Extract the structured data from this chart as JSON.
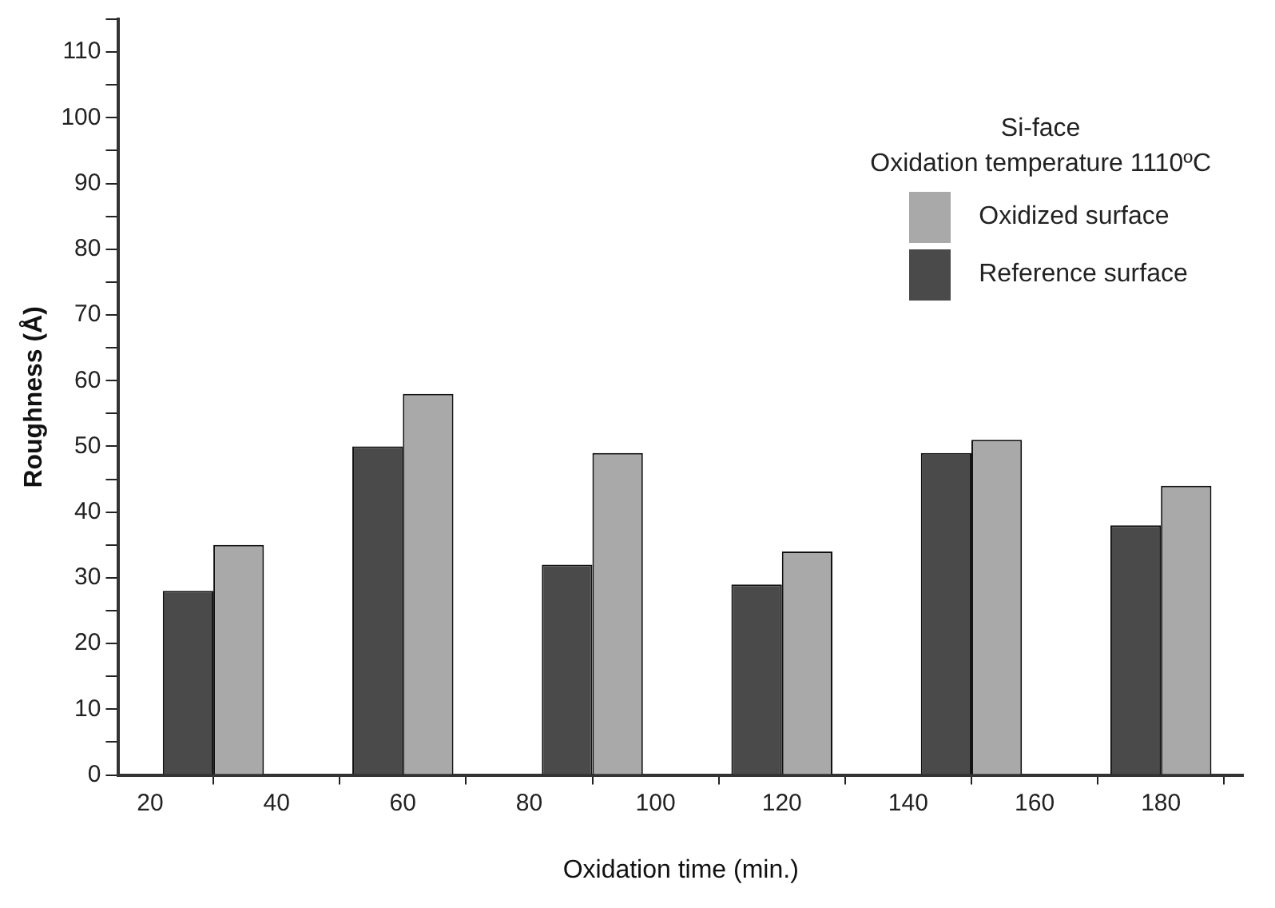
{
  "chart_data": {
    "type": "bar",
    "xlabel": "Oxidation time (min.)",
    "ylabel": "Roughness (Å)",
    "legend_title": "Si-face\nOxidation temperature 1110ºC",
    "x": [
      30,
      60,
      90,
      120,
      150,
      180
    ],
    "series": [
      {
        "name": "Reference surface",
        "color": "#4a4a4a",
        "values": [
          28,
          50,
          32,
          29,
          49,
          38
        ]
      },
      {
        "name": "Oxidized surface",
        "color": "#a9a9a9",
        "values": [
          35,
          58,
          49,
          34,
          51,
          44
        ]
      }
    ],
    "xlim": [
      15,
      193
    ],
    "xticks": [
      20,
      40,
      60,
      80,
      100,
      120,
      140,
      160,
      180
    ],
    "ylim": [
      0,
      115
    ],
    "yticks": [
      0,
      10,
      20,
      30,
      40,
      50,
      60,
      70,
      80,
      90,
      100,
      110
    ],
    "grid": false,
    "legend": "top right"
  }
}
